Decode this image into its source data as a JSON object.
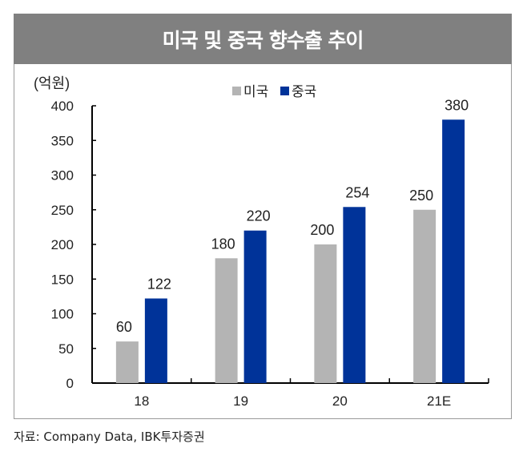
{
  "chart_data": {
    "type": "bar",
    "title": "미국 및 중국 향수출 추이",
    "ylabel": "(억원)",
    "xlabel": "",
    "categories": [
      "18",
      "19",
      "20",
      "21E"
    ],
    "series": [
      {
        "name": "미국",
        "color": "#b4b4b4",
        "values": [
          60,
          180,
          200,
          250
        ]
      },
      {
        "name": "중국",
        "color": "#003399",
        "values": [
          122,
          220,
          254,
          380
        ]
      }
    ],
    "ylim": [
      0,
      400
    ],
    "yticks": [
      0,
      50,
      100,
      150,
      200,
      250,
      300,
      350,
      400
    ],
    "legend": "top-center",
    "grid": false
  },
  "source": "자료: Company Data, IBK투자증권"
}
